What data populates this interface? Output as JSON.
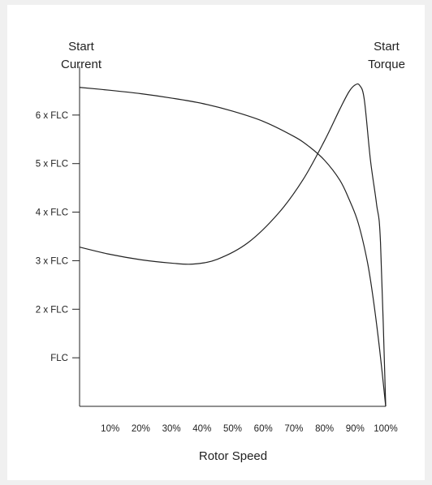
{
  "chart_data": {
    "type": "line",
    "title": "",
    "xlabel": "Rotor Speed",
    "ylabel": "",
    "x_unit": "%",
    "x_ticks": [
      {
        "value": 10,
        "label": "10%"
      },
      {
        "value": 20,
        "label": "20%"
      },
      {
        "value": 30,
        "label": "30%"
      },
      {
        "value": 40,
        "label": "40%"
      },
      {
        "value": 50,
        "label": "50%"
      },
      {
        "value": 60,
        "label": "60%"
      },
      {
        "value": 70,
        "label": "70%"
      },
      {
        "value": 80,
        "label": "80%"
      },
      {
        "value": 90,
        "label": "90%"
      },
      {
        "value": 100,
        "label": "100%"
      }
    ],
    "y_ticks": [
      {
        "value": 1,
        "label": "FLC"
      },
      {
        "value": 2,
        "label": "2 x FLC"
      },
      {
        "value": 3,
        "label": "3 x FLC"
      },
      {
        "value": 4,
        "label": "4 x FLC"
      },
      {
        "value": 5,
        "label": "5 x FLC"
      },
      {
        "value": 6,
        "label": "6 x FLC"
      }
    ],
    "xlim": [
      0,
      100
    ],
    "ylim": [
      0,
      7
    ],
    "grid": false,
    "series": [
      {
        "name": "Start Current",
        "label_lines": [
          "Start",
          "Current"
        ],
        "label_position": "top-left",
        "x": [
          0,
          10,
          20,
          30,
          40,
          50,
          60,
          70,
          75,
          80,
          85,
          88,
          91,
          94,
          96,
          98,
          100
        ],
        "y": [
          6.57,
          6.51,
          6.44,
          6.35,
          6.24,
          6.08,
          5.87,
          5.56,
          5.35,
          5.07,
          4.66,
          4.27,
          3.78,
          2.98,
          2.18,
          1.18,
          0
        ]
      },
      {
        "name": "Start Torque",
        "label_lines": [
          "Start",
          "Torque"
        ],
        "label_position": "top-right",
        "x": [
          0,
          10,
          20,
          30,
          37,
          45,
          55,
          65,
          73,
          80,
          85,
          88,
          90,
          91.5,
          93,
          95,
          97,
          98.3,
          100
        ],
        "y": [
          3.28,
          3.13,
          3.02,
          2.95,
          2.93,
          3.03,
          3.37,
          3.98,
          4.67,
          5.47,
          6.12,
          6.48,
          6.62,
          6.61,
          6.32,
          5.08,
          4.17,
          3.37,
          0
        ]
      }
    ]
  }
}
